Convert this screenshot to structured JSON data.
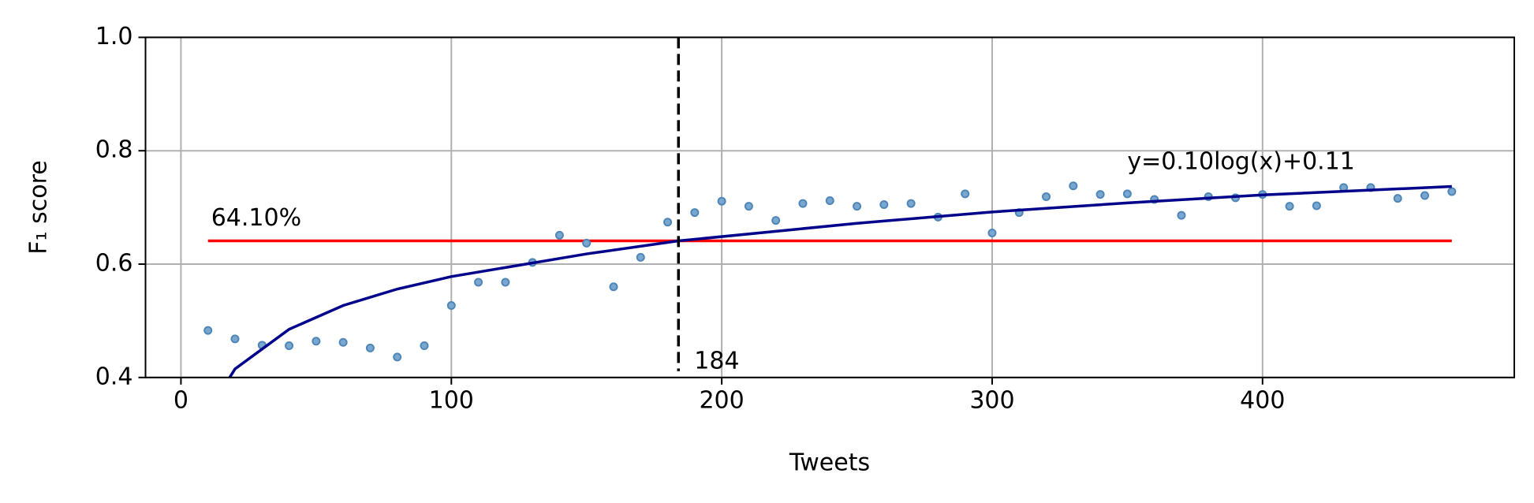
{
  "chart_data": {
    "type": "scatter",
    "xlabel": "Tweets",
    "ylabel": "F₁ score",
    "xlim": [
      -13.1,
      493.1
    ],
    "ylim": [
      0.4,
      1.0
    ],
    "xticks": [
      0,
      100,
      200,
      300,
      400
    ],
    "yticks": [
      {
        "value": 0.4,
        "label": "0.4"
      },
      {
        "value": 0.6,
        "label": "0.6"
      },
      {
        "value": 0.8,
        "label": "0.8"
      },
      {
        "value": 1.0,
        "label": "1.0"
      }
    ],
    "grid": true,
    "series": [
      {
        "type": "scatter",
        "color": "#7aa7cf",
        "x": [
          10,
          20,
          30,
          40,
          50,
          60,
          70,
          80,
          90,
          100,
          110,
          120,
          130,
          140,
          150,
          160,
          170,
          180,
          190,
          200,
          210,
          220,
          230,
          240,
          250,
          260,
          270,
          280,
          290,
          300,
          310,
          320,
          330,
          340,
          350,
          360,
          370,
          380,
          390,
          400,
          410,
          420,
          430,
          440,
          450,
          460,
          470
        ],
        "values": [
          0.483,
          0.468,
          0.457,
          0.456,
          0.464,
          0.462,
          0.452,
          0.436,
          0.456,
          0.527,
          0.568,
          0.568,
          0.603,
          0.651,
          0.637,
          0.56,
          0.612,
          0.674,
          0.691,
          0.711,
          0.702,
          0.677,
          0.707,
          0.712,
          0.702,
          0.705,
          0.707,
          0.683,
          0.724,
          0.655,
          0.691,
          0.719,
          0.738,
          0.723,
          0.724,
          0.714,
          0.686,
          0.719,
          0.717,
          0.723,
          0.702,
          0.703,
          0.735,
          0.735,
          0.716,
          0.721,
          0.728
        ]
      },
      {
        "type": "line",
        "color": "#00008b",
        "x": [
          18,
          20,
          40,
          60,
          80,
          100,
          150,
          184,
          250,
          300,
          350,
          400,
          470
        ],
        "values": [
          0.4,
          0.415,
          0.485,
          0.527,
          0.556,
          0.578,
          0.618,
          0.641,
          0.672,
          0.692,
          0.708,
          0.722,
          0.737
        ]
      }
    ],
    "hline": {
      "value": 0.641,
      "label": "64.10%",
      "xrange": [
        10,
        470
      ],
      "color": "#ff0000"
    },
    "vline": {
      "value": 184,
      "color": "#000000"
    },
    "annotation": {
      "text": "y=0.10log(x)+0.11",
      "color": "#00008b"
    }
  }
}
